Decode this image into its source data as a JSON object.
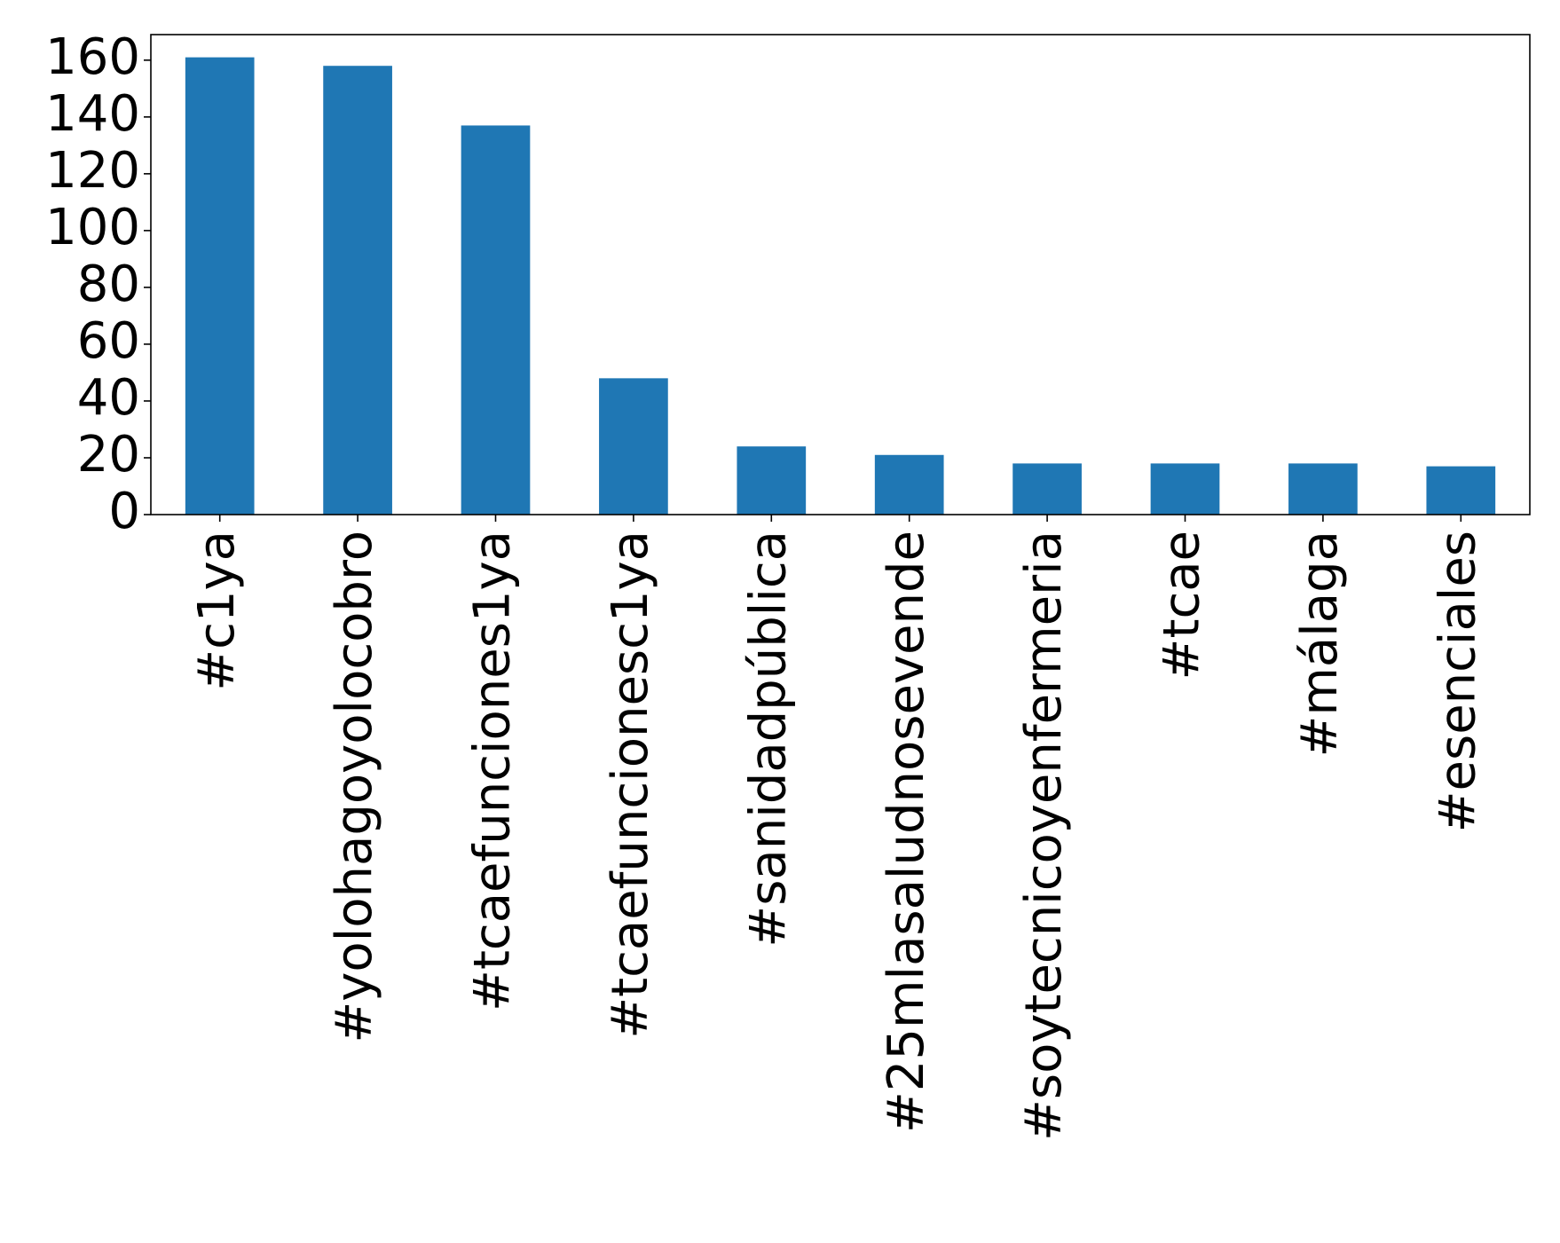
{
  "chart_data": {
    "type": "bar",
    "categories": [
      "#c1ya",
      "#yolohagoyolocobro",
      "#tcaefunciones1ya",
      "#tcaefuncionesc1ya",
      "#sanidadpública",
      "#25mlasaludnosevende",
      "#soytecnicoyenfermeria",
      "#tcae",
      "#málaga",
      "#esenciales"
    ],
    "values": [
      161,
      158,
      137,
      48,
      24,
      21,
      18,
      18,
      18,
      17
    ],
    "title": "",
    "xlabel": "",
    "ylabel": "",
    "ylim": [
      0,
      169
    ],
    "yticks": [
      0,
      20,
      40,
      60,
      80,
      100,
      120,
      140,
      160
    ],
    "grid": false,
    "bar_color": "#1f77b4"
  }
}
